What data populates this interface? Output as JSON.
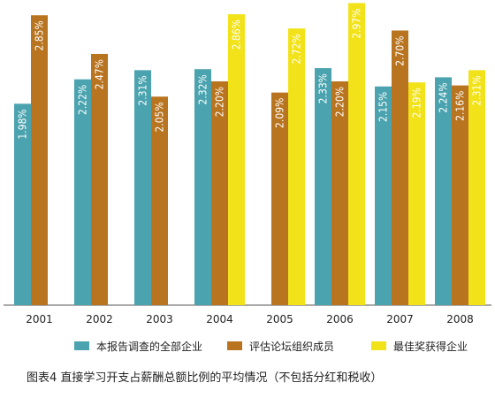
{
  "chart_data": {
    "type": "bar",
    "title": "图表4  直接学习开支占薪酬总额比例的平均情况（不包括分红和税收）",
    "categories": [
      "2001",
      "2002",
      "2003",
      "2004",
      "2005",
      "2006",
      "2007",
      "2008"
    ],
    "series": [
      {
        "name": "本报告调查的全部企业",
        "color": "#4aa3ae",
        "values": [
          1.98,
          2.22,
          2.31,
          2.32,
          null,
          2.33,
          2.15,
          2.24
        ],
        "labels": [
          "1.98%",
          "2.22%",
          "2.31%",
          "2.32%",
          "",
          "2.33%",
          "2.15%",
          "2.24%"
        ]
      },
      {
        "name": "评估论坛组织成员",
        "color": "#b8741f",
        "values": [
          2.85,
          2.47,
          2.05,
          2.2,
          2.09,
          2.2,
          2.7,
          2.16
        ],
        "labels": [
          "2.85%",
          "2.47%",
          "2.05%",
          "2.20%",
          "2.09%",
          "2.20%",
          "2.70%",
          "2.16%"
        ]
      },
      {
        "name": "最佳奖获得企业",
        "color": "#f2e21a",
        "values": [
          null,
          null,
          null,
          2.86,
          2.72,
          2.97,
          2.19,
          2.31
        ],
        "labels": [
          "",
          "",
          "",
          "2.86%",
          "2.72%",
          "2.97%",
          "2.19%",
          "2.31%"
        ]
      }
    ],
    "ylim": [
      0,
      3.0
    ],
    "grid": false,
    "legend_position": "bottom"
  }
}
